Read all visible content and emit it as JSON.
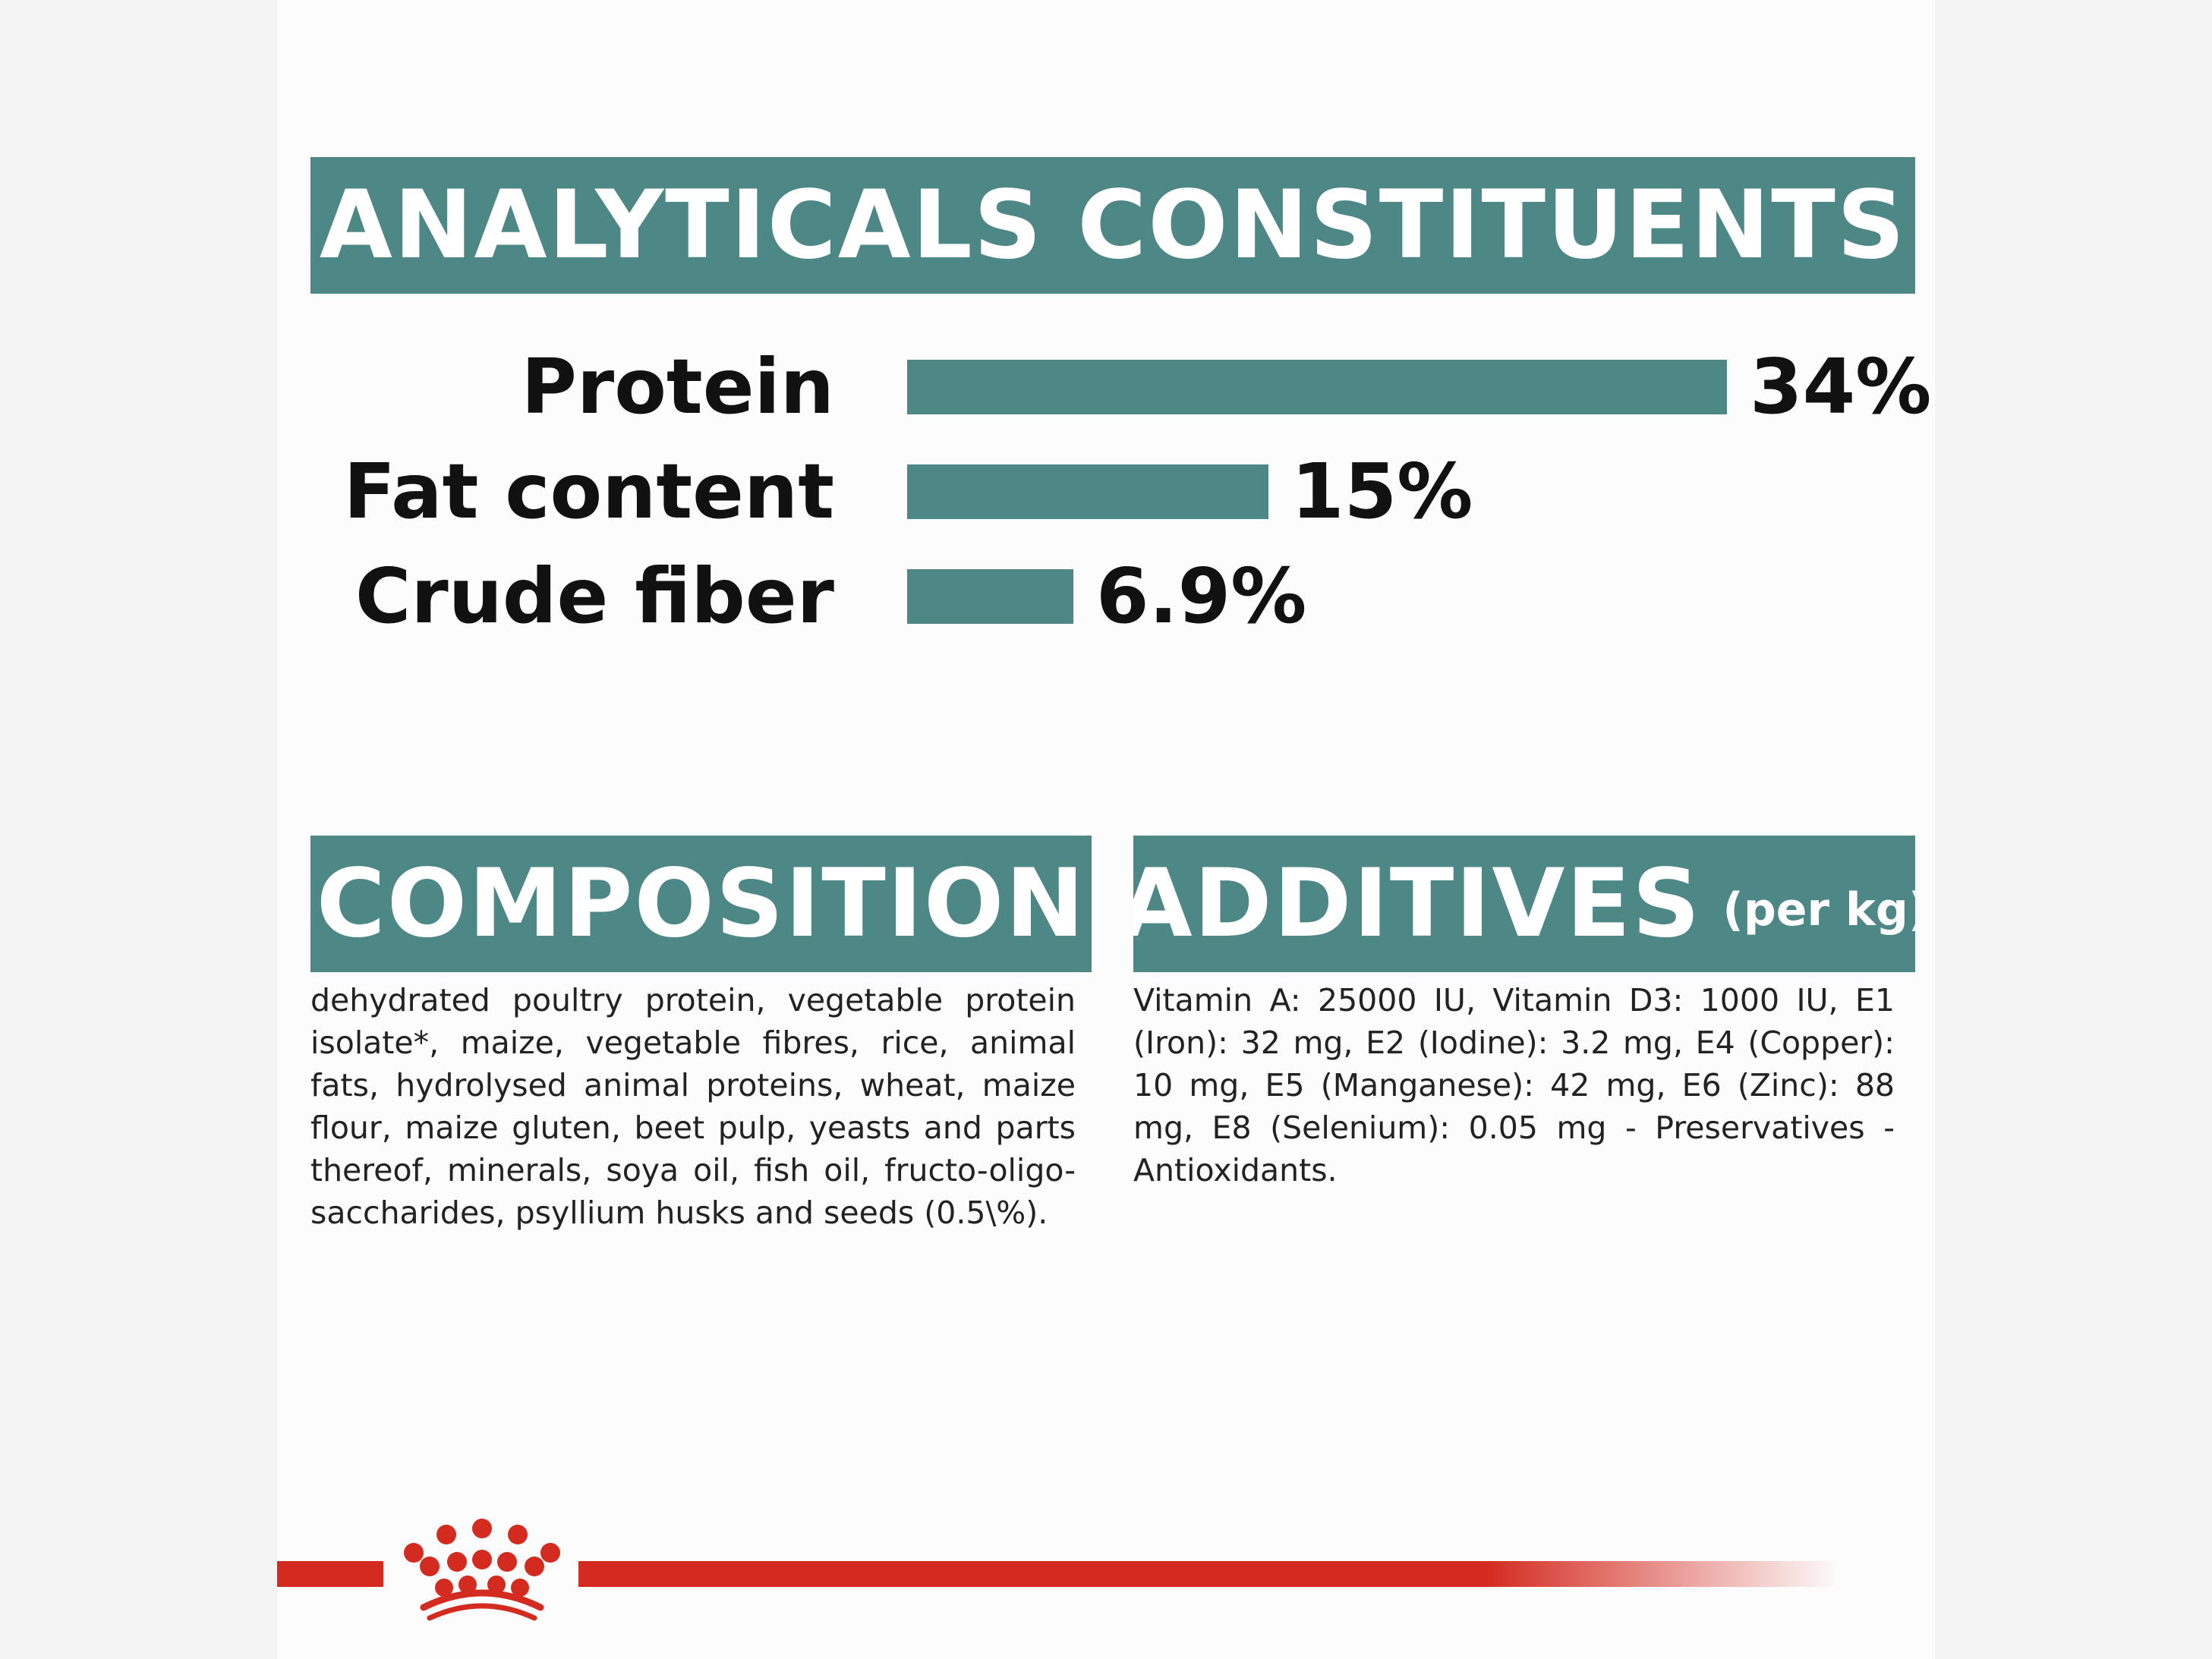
{
  "analytical": {
    "title": "ANALYTICALS CONSTITUENTS",
    "rows": [
      {
        "label": "Protein",
        "value_text": "34%",
        "value": 34
      },
      {
        "label": "Fat content",
        "value_text": "15%",
        "value": 15
      },
      {
        "label": "Crude fiber",
        "value_text": "6.9%",
        "value": 6.9
      }
    ]
  },
  "composition": {
    "title": "COMPOSITION",
    "text": "dehydrated poultry protein, vegetable protein isolate*, maize, vegetable fibres, rice, animal fats, hydrolysed animal proteins, wheat, maize flour, maize gluten, beet pulp, yeasts and parts thereof, minerals, soya oil, fish oil, fructo-oligo-saccharides, psyllium husks and seeds (0.5\\%)."
  },
  "additives": {
    "title": "ADDITIVES",
    "title_suffix": "(per kg)",
    "text": "Vitamin A: 25000 IU, Vitamin D3: 1000 IU, E1 (Iron): 32 mg, E2 (Iodine): 3.2 mg, E4 (Copper): 10 mg, E5 (Manganese): 42 mg, E6 (Zinc): 88 mg, E8 (Selenium): 0.05 mg - Preservatives - Antioxidants."
  },
  "colors": {
    "accent": "#4e8886",
    "brand_red": "#d42b20"
  },
  "icons": {
    "logo": "crown-logo-icon"
  }
}
